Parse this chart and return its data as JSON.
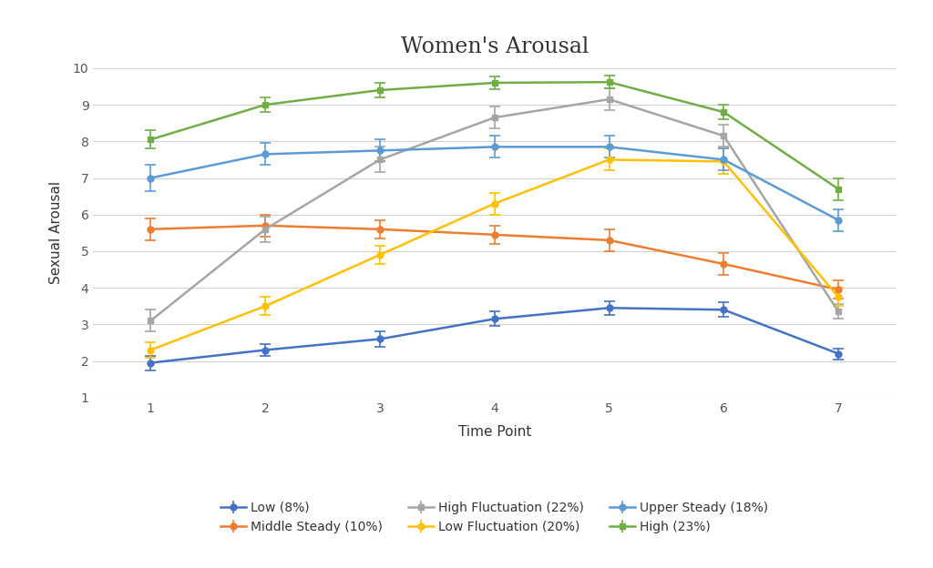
{
  "title": "Women's Arousal",
  "xlabel": "Time Point",
  "ylabel": "Sexual Arousal",
  "x": [
    1,
    2,
    3,
    4,
    5,
    6,
    7
  ],
  "ylim": [
    1,
    10
  ],
  "yticks": [
    1,
    2,
    3,
    4,
    5,
    6,
    7,
    8,
    9,
    10
  ],
  "series": {
    "Low (8%)": {
      "y": [
        1.95,
        2.3,
        2.6,
        3.15,
        3.45,
        3.4,
        2.2
      ],
      "yerr": [
        0.2,
        0.15,
        0.2,
        0.2,
        0.18,
        0.2,
        0.15
      ],
      "color": "#4472C4",
      "marker": "o"
    },
    "Middle Steady (10%)": {
      "y": [
        5.6,
        5.7,
        5.6,
        5.45,
        5.3,
        4.65,
        3.95
      ],
      "yerr": [
        0.3,
        0.3,
        0.25,
        0.25,
        0.3,
        0.3,
        0.25
      ],
      "color": "#ED7D31",
      "marker": "o"
    },
    "High Fluctuation (22%)": {
      "y": [
        3.1,
        5.6,
        7.5,
        8.65,
        9.15,
        8.15,
        3.35
      ],
      "yerr": [
        0.3,
        0.35,
        0.35,
        0.3,
        0.3,
        0.3,
        0.2
      ],
      "color": "#A5A5A5",
      "marker": "s"
    },
    "Low Fluctuation (20%)": {
      "y": [
        2.3,
        3.5,
        4.9,
        6.3,
        7.5,
        7.45,
        3.75
      ],
      "yerr": [
        0.2,
        0.25,
        0.25,
        0.3,
        0.3,
        0.35,
        0.25
      ],
      "color": "#FFC000",
      "marker": "o"
    },
    "Upper Steady (18%)": {
      "y": [
        7.0,
        7.65,
        7.75,
        7.85,
        7.85,
        7.5,
        5.85
      ],
      "yerr": [
        0.35,
        0.3,
        0.3,
        0.3,
        0.3,
        0.3,
        0.3
      ],
      "color": "#5B9BD5",
      "marker": "o"
    },
    "High (23%)": {
      "y": [
        8.05,
        9.0,
        9.4,
        9.6,
        9.62,
        8.8,
        6.7
      ],
      "yerr": [
        0.25,
        0.2,
        0.2,
        0.18,
        0.18,
        0.2,
        0.3
      ],
      "color": "#70AD47",
      "marker": "s"
    }
  },
  "legend_order": [
    "Low (8%)",
    "Middle Steady (10%)",
    "High Fluctuation (22%)",
    "Low Fluctuation (20%)",
    "Upper Steady (18%)",
    "High (23%)"
  ],
  "background_color": "#FFFFFF",
  "grid_color": "#D0D0D0",
  "title_fontsize": 17,
  "label_fontsize": 11,
  "tick_fontsize": 10,
  "legend_fontsize": 10
}
